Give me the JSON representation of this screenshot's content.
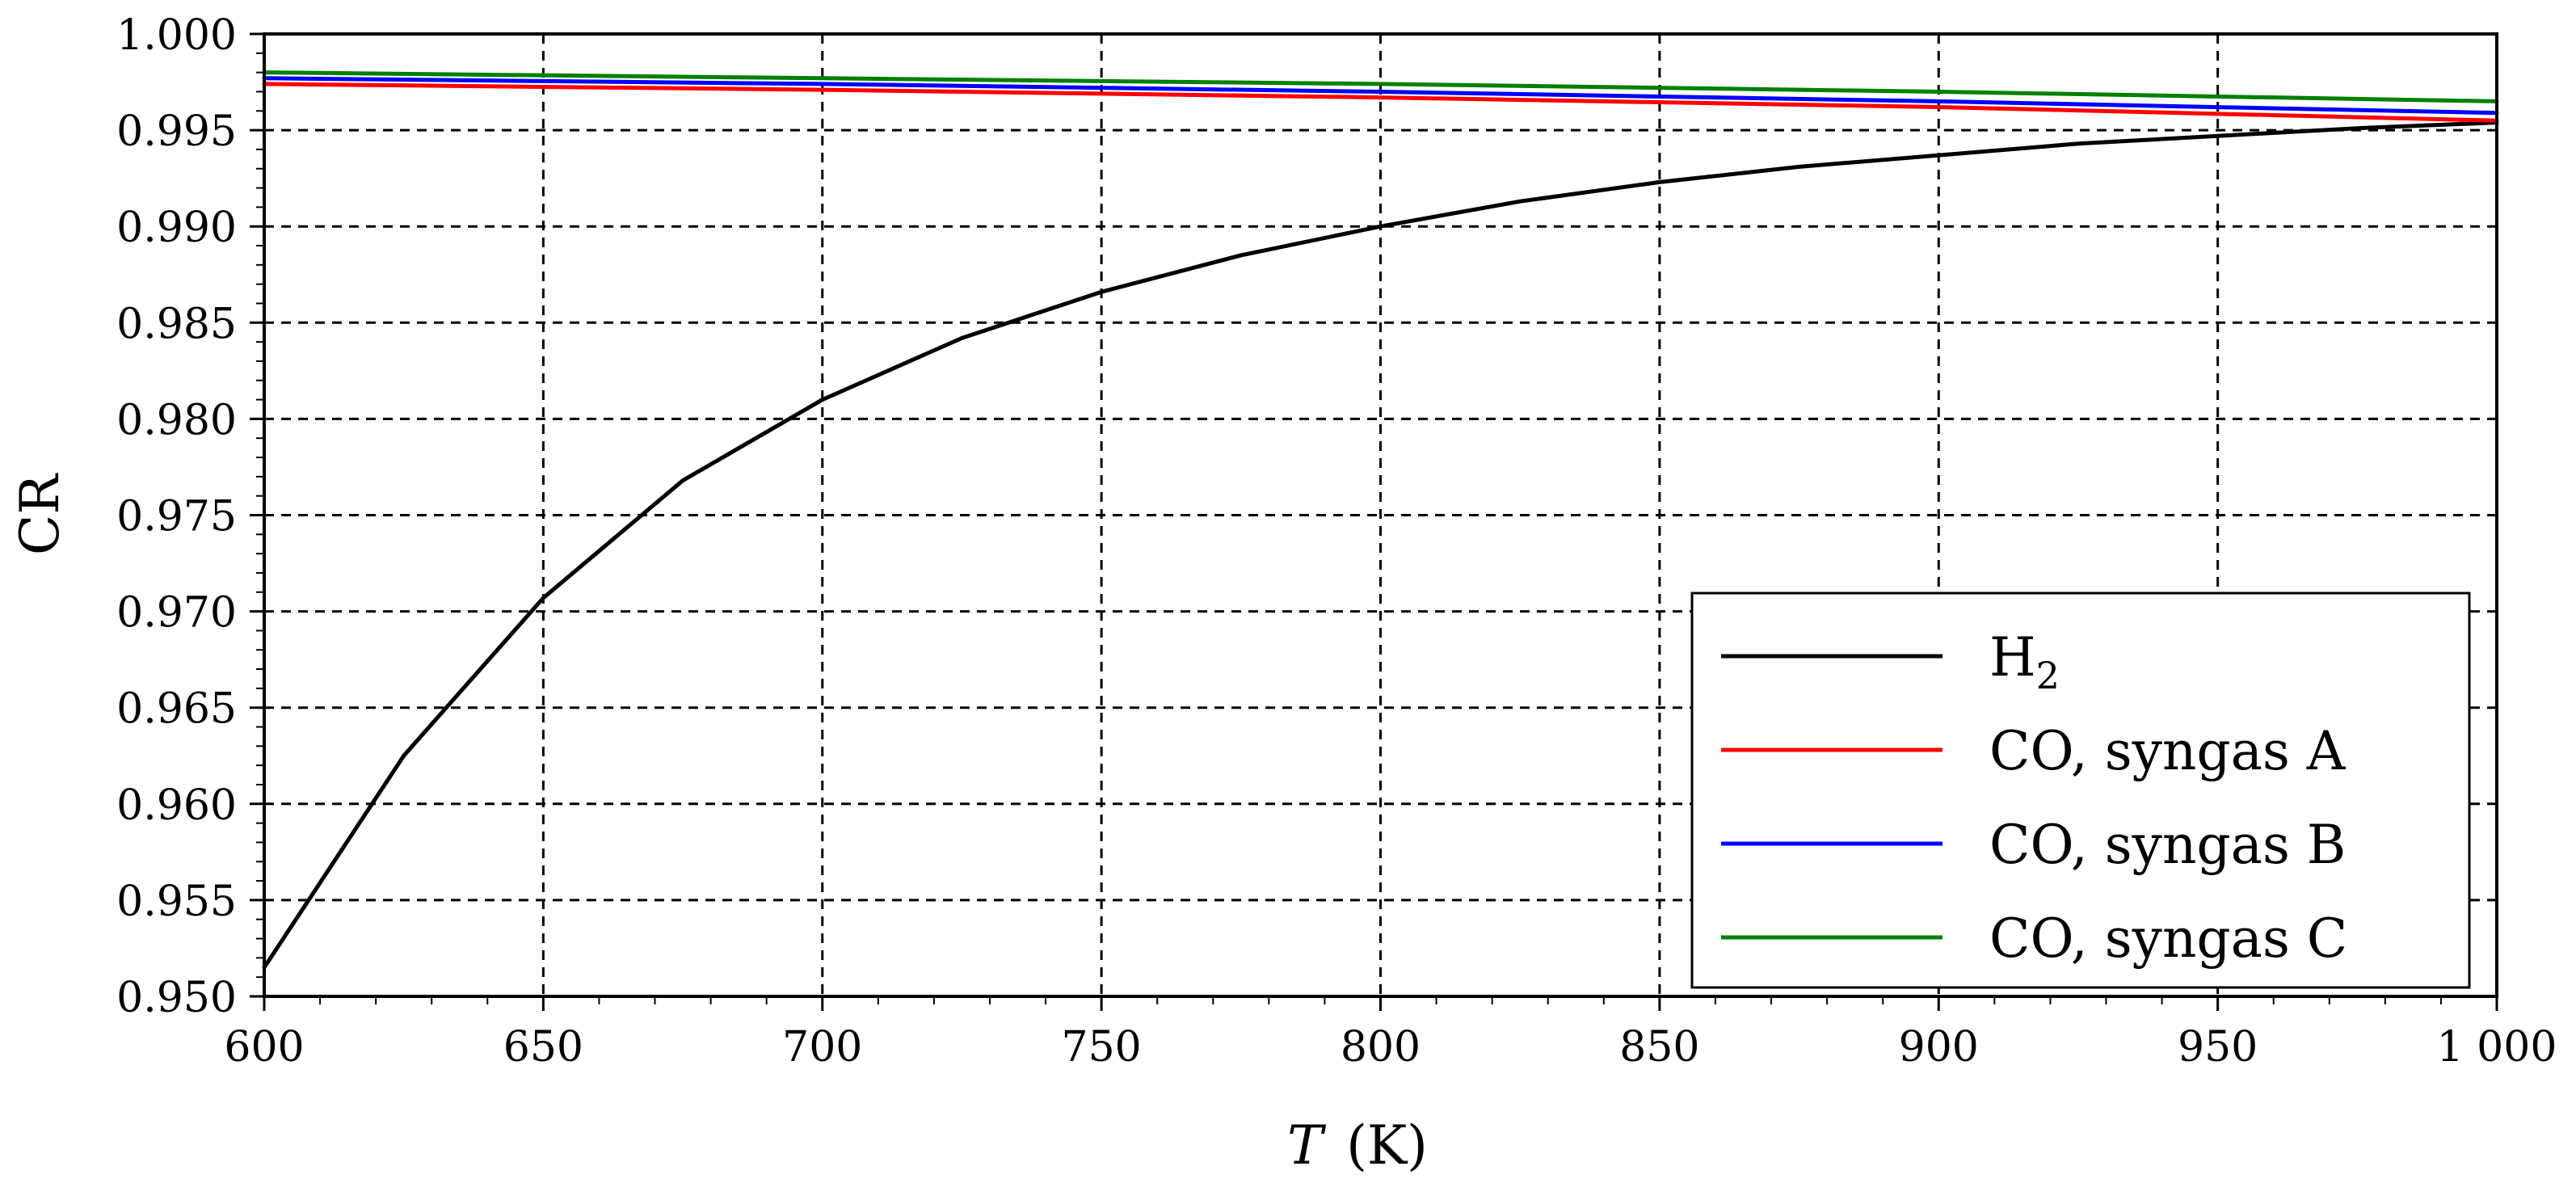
{
  "chart_data": {
    "type": "line",
    "xlabel_var": "T",
    "xlabel_unit": "(K)",
    "ylabel": "CR",
    "xlim": [
      600,
      1000
    ],
    "ylim": [
      0.95,
      1.0
    ],
    "xticks": [
      600,
      650,
      700,
      750,
      800,
      850,
      900,
      950,
      1000
    ],
    "xtick_labels": [
      "600",
      "650",
      "700",
      "750",
      "800",
      "850",
      "900",
      "950",
      "1 000"
    ],
    "yticks": [
      0.95,
      0.955,
      0.96,
      0.965,
      0.97,
      0.975,
      0.98,
      0.985,
      0.99,
      0.995,
      1.0
    ],
    "ytick_labels": [
      "0.950",
      "0.955",
      "0.960",
      "0.965",
      "0.970",
      "0.975",
      "0.980",
      "0.985",
      "0.990",
      "0.995",
      "1.000"
    ],
    "grid": true,
    "legend_position": "bottom-right",
    "series": [
      {
        "name": "H₂",
        "name_main": "H",
        "name_sub": "2",
        "color": "#000000",
        "x": [
          600,
          625,
          650,
          675,
          700,
          725,
          750,
          775,
          800,
          825,
          850,
          875,
          900,
          925,
          950,
          975,
          1000
        ],
        "y": [
          0.9515,
          0.9625,
          0.9707,
          0.9768,
          0.981,
          0.9842,
          0.9866,
          0.9885,
          0.99,
          0.9913,
          0.9923,
          0.9931,
          0.9937,
          0.9943,
          0.9947,
          0.9951,
          0.9954
        ]
      },
      {
        "name": "CO,  syngas A",
        "color": "#ff0000",
        "x": [
          600,
          700,
          800,
          900,
          1000
        ],
        "y": [
          0.9974,
          0.9971,
          0.9967,
          0.9962,
          0.9955
        ]
      },
      {
        "name": "CO,  syngas B",
        "color": "#0000ff",
        "x": [
          600,
          700,
          800,
          900,
          1000
        ],
        "y": [
          0.9977,
          0.9974,
          0.997,
          0.9965,
          0.9959
        ]
      },
      {
        "name": "CO,  syngas C",
        "color": "#008000",
        "x": [
          600,
          700,
          800,
          900,
          1000
        ],
        "y": [
          0.998,
          0.9977,
          0.9974,
          0.997,
          0.9965
        ]
      }
    ]
  }
}
